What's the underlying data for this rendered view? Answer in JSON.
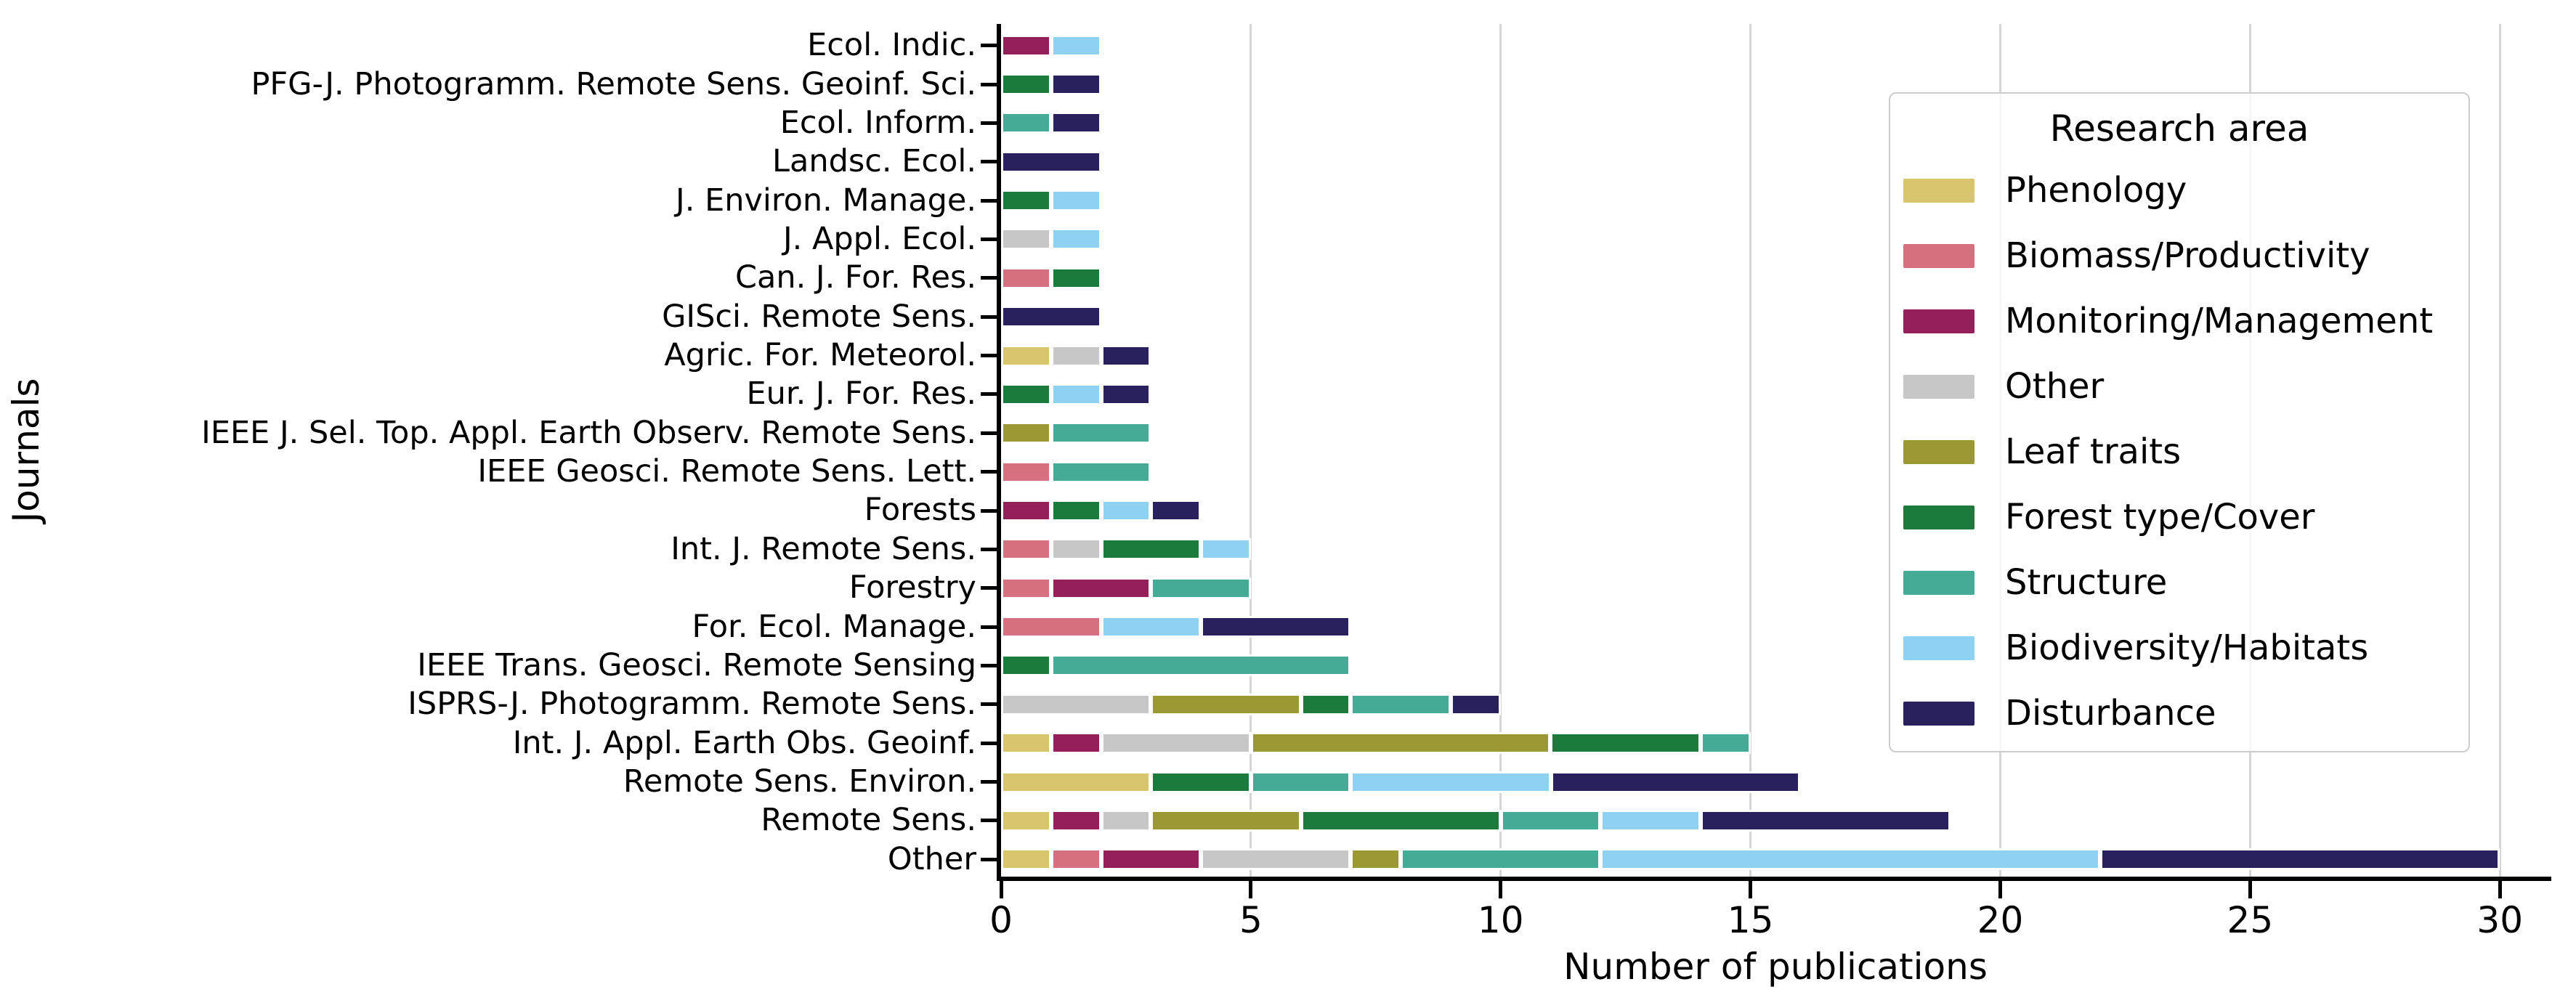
{
  "chart_data": {
    "type": "bar",
    "orientation": "horizontal-stacked",
    "xlabel": "Number of publications",
    "ylabel": "Journals",
    "xlim": [
      0,
      31
    ],
    "xticks": [
      0,
      5,
      10,
      15,
      20,
      25,
      30
    ],
    "grid": "vertical",
    "legend_title": "Research area",
    "legend_position": "upper right",
    "categories": [
      "Ecol. Indic.",
      "PFG-J. Photogramm. Remote Sens. Geoinf. Sci.",
      "Ecol. Inform.",
      "Landsc. Ecol.",
      "J. Environ. Manage.",
      "J. Appl. Ecol.",
      "Can. J. For. Res.",
      "GISci. Remote Sens.",
      "Agric. For. Meteorol.",
      "Eur. J. For. Res.",
      "IEEE J. Sel. Top. Appl. Earth Observ. Remote Sens.",
      "IEEE Geosci. Remote Sens. Lett.",
      "Forests",
      "Int. J. Remote Sens.",
      "Forestry",
      "For. Ecol. Manage.",
      "IEEE Trans. Geosci. Remote Sensing",
      "ISPRS-J. Photogramm. Remote Sens.",
      "Int. J. Appl. Earth Obs. Geoinf.",
      "Remote Sens. Environ.",
      "Remote Sens.",
      "Other"
    ],
    "series": [
      {
        "name": "Phenology",
        "color": "#d8c66e",
        "values": [
          0,
          0,
          0,
          0,
          0,
          0,
          0,
          0,
          1,
          0,
          0,
          0,
          0,
          0,
          0,
          0,
          0,
          0,
          1,
          3,
          1,
          1
        ]
      },
      {
        "name": "Biomass/Productivity",
        "color": "#d4707f",
        "values": [
          0,
          0,
          0,
          0,
          0,
          0,
          1,
          0,
          0,
          0,
          0,
          1,
          0,
          1,
          1,
          2,
          0,
          0,
          0,
          0,
          0,
          1
        ]
      },
      {
        "name": "Monitoring/Management",
        "color": "#942059",
        "values": [
          1,
          0,
          0,
          0,
          0,
          0,
          0,
          0,
          0,
          0,
          0,
          0,
          1,
          0,
          2,
          0,
          0,
          0,
          1,
          0,
          1,
          2
        ]
      },
      {
        "name": "Other",
        "color": "#c7c7c7",
        "values": [
          0,
          0,
          0,
          0,
          0,
          1,
          0,
          0,
          1,
          0,
          0,
          0,
          0,
          1,
          0,
          0,
          0,
          3,
          3,
          0,
          1,
          3
        ]
      },
      {
        "name": "Leaf traits",
        "color": "#9b9933",
        "values": [
          0,
          0,
          0,
          0,
          0,
          0,
          0,
          0,
          0,
          0,
          1,
          0,
          0,
          0,
          0,
          0,
          0,
          3,
          6,
          0,
          3,
          1
        ]
      },
      {
        "name": "Forest type/Cover",
        "color": "#1b7a3c",
        "values": [
          0,
          1,
          0,
          0,
          1,
          0,
          1,
          0,
          0,
          1,
          0,
          0,
          1,
          2,
          0,
          0,
          1,
          1,
          3,
          2,
          4,
          0
        ]
      },
      {
        "name": "Structure",
        "color": "#45ab96",
        "values": [
          0,
          0,
          1,
          0,
          0,
          0,
          0,
          0,
          0,
          0,
          2,
          2,
          0,
          0,
          2,
          0,
          6,
          2,
          1,
          2,
          2,
          4
        ]
      },
      {
        "name": "Biodiversity/Habitats",
        "color": "#8ed1f1",
        "values": [
          1,
          0,
          0,
          0,
          1,
          1,
          0,
          0,
          0,
          1,
          0,
          0,
          1,
          1,
          0,
          2,
          0,
          0,
          0,
          4,
          2,
          10
        ]
      },
      {
        "name": "Disturbance",
        "color": "#29215e",
        "values": [
          0,
          1,
          1,
          2,
          0,
          0,
          0,
          2,
          1,
          1,
          0,
          0,
          1,
          0,
          0,
          3,
          0,
          1,
          0,
          5,
          5,
          8
        ]
      }
    ]
  }
}
